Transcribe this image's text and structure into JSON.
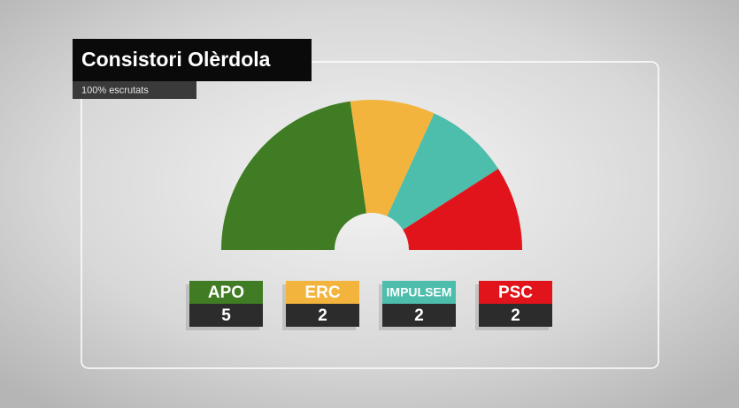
{
  "chart_data": {
    "type": "parliament",
    "title": "Consistori Olèrdola",
    "subtitle": "100% escrutats",
    "categories": [
      "APO",
      "ERC",
      "IMPULSEM",
      "PSC"
    ],
    "values": [
      5,
      2,
      2,
      2
    ],
    "colors": [
      "#3f7c23",
      "#f2b43d",
      "#4dbdac",
      "#e0141a"
    ]
  }
}
